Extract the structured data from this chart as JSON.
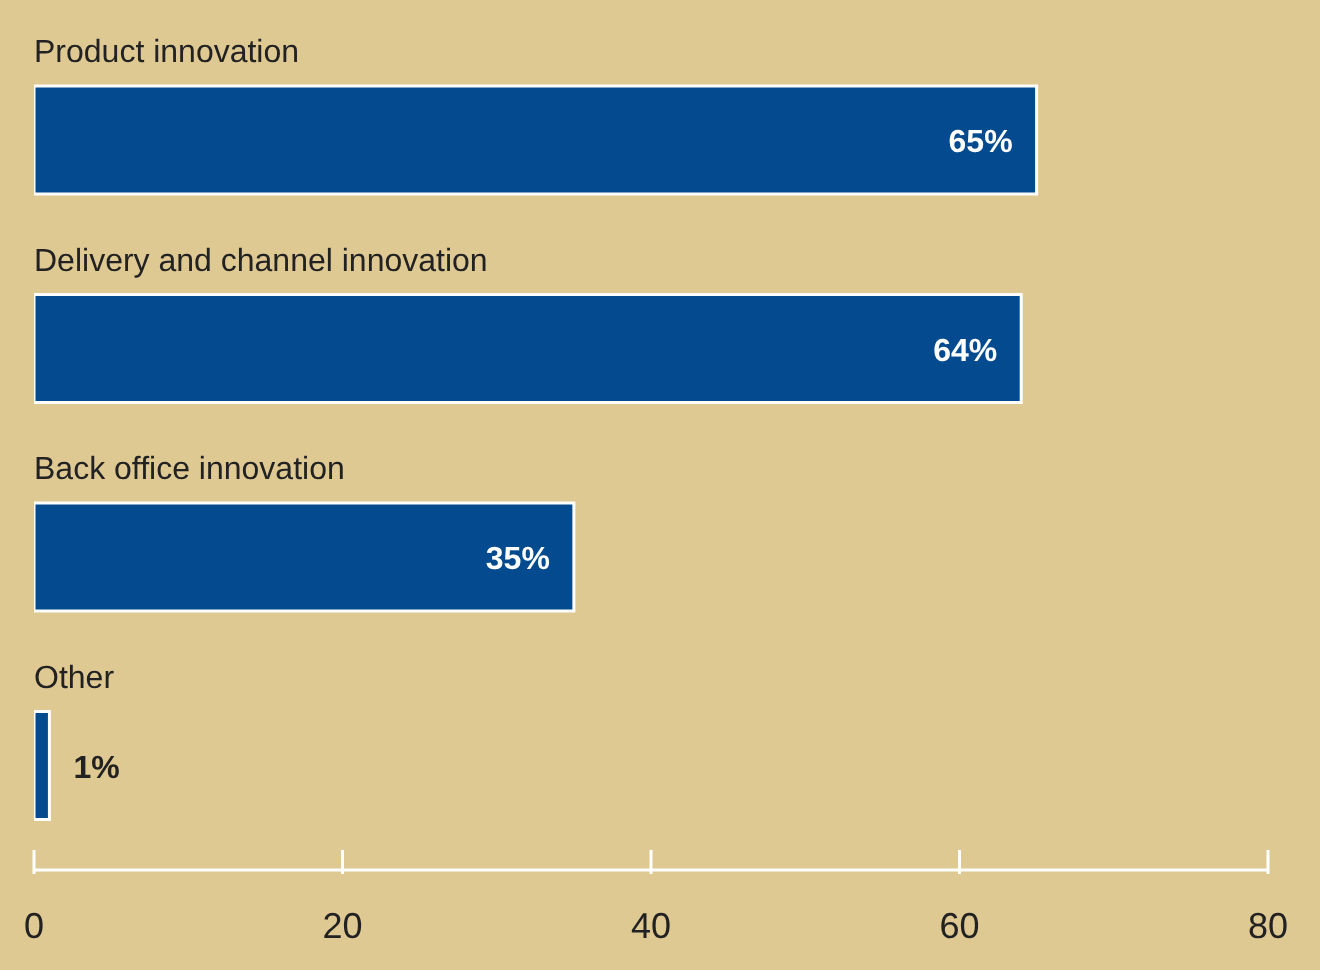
{
  "chart_data": {
    "type": "bar",
    "orientation": "horizontal",
    "categories": [
      "Product innovation",
      "Delivery and channel innovation",
      "Back office innovation",
      "Other"
    ],
    "values": [
      65,
      64,
      35,
      1
    ],
    "value_labels": [
      "65%",
      "64%",
      "35%",
      "1%"
    ],
    "color": "#034a8f",
    "xlim": [
      0,
      80
    ],
    "xticks": [
      0,
      20,
      40,
      60,
      80
    ],
    "grid": false,
    "legend": false
  }
}
